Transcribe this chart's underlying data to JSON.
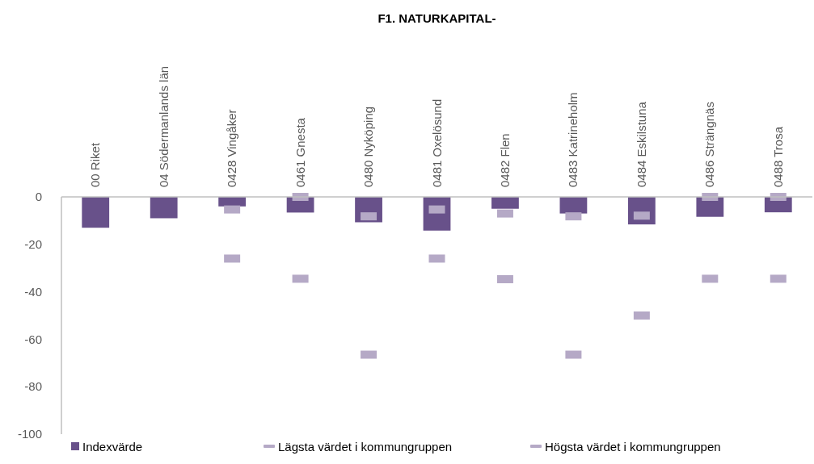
{
  "chart_data": {
    "type": "bar",
    "title": "F1. NATURKAPITAL-",
    "categories": [
      "00 Riket",
      "04 Södermanlands län",
      "0428 Vingåker",
      "0461 Gnesta",
      "0480 Nyköping",
      "0481 Oxelösund",
      "0482 Flen",
      "0483 Katrineholm",
      "0484 Eskilstuna",
      "0486 Strängnäs",
      "0488 Trosa"
    ],
    "series": [
      {
        "name": "Indexvärde",
        "type": "bar",
        "color": "#68518a",
        "values": [
          -13,
          -9,
          -4,
          -6.6,
          -10.7,
          -14.2,
          -5,
          -7,
          -11.6,
          -8.4,
          -6.5
        ]
      },
      {
        "name": "Lägsta värdet i kommungruppen",
        "type": "scatter",
        "color": "#b5a9c6",
        "values": [
          null,
          null,
          -26,
          -34.5,
          -66.5,
          -26,
          -34.7,
          -66.5,
          -50,
          -34.5,
          -34.5
        ]
      },
      {
        "name": "Högsta värdet i kommungruppen",
        "type": "scatter",
        "color": "#b5a9c6",
        "values": [
          null,
          null,
          -5.3,
          0,
          -8.2,
          -5.3,
          -7,
          -8.2,
          -7.9,
          0,
          0
        ]
      }
    ],
    "ylim": [
      -100,
      0
    ],
    "yticks": [
      -100,
      -80,
      -60,
      -40,
      -20,
      0
    ],
    "legend": "bottom"
  }
}
